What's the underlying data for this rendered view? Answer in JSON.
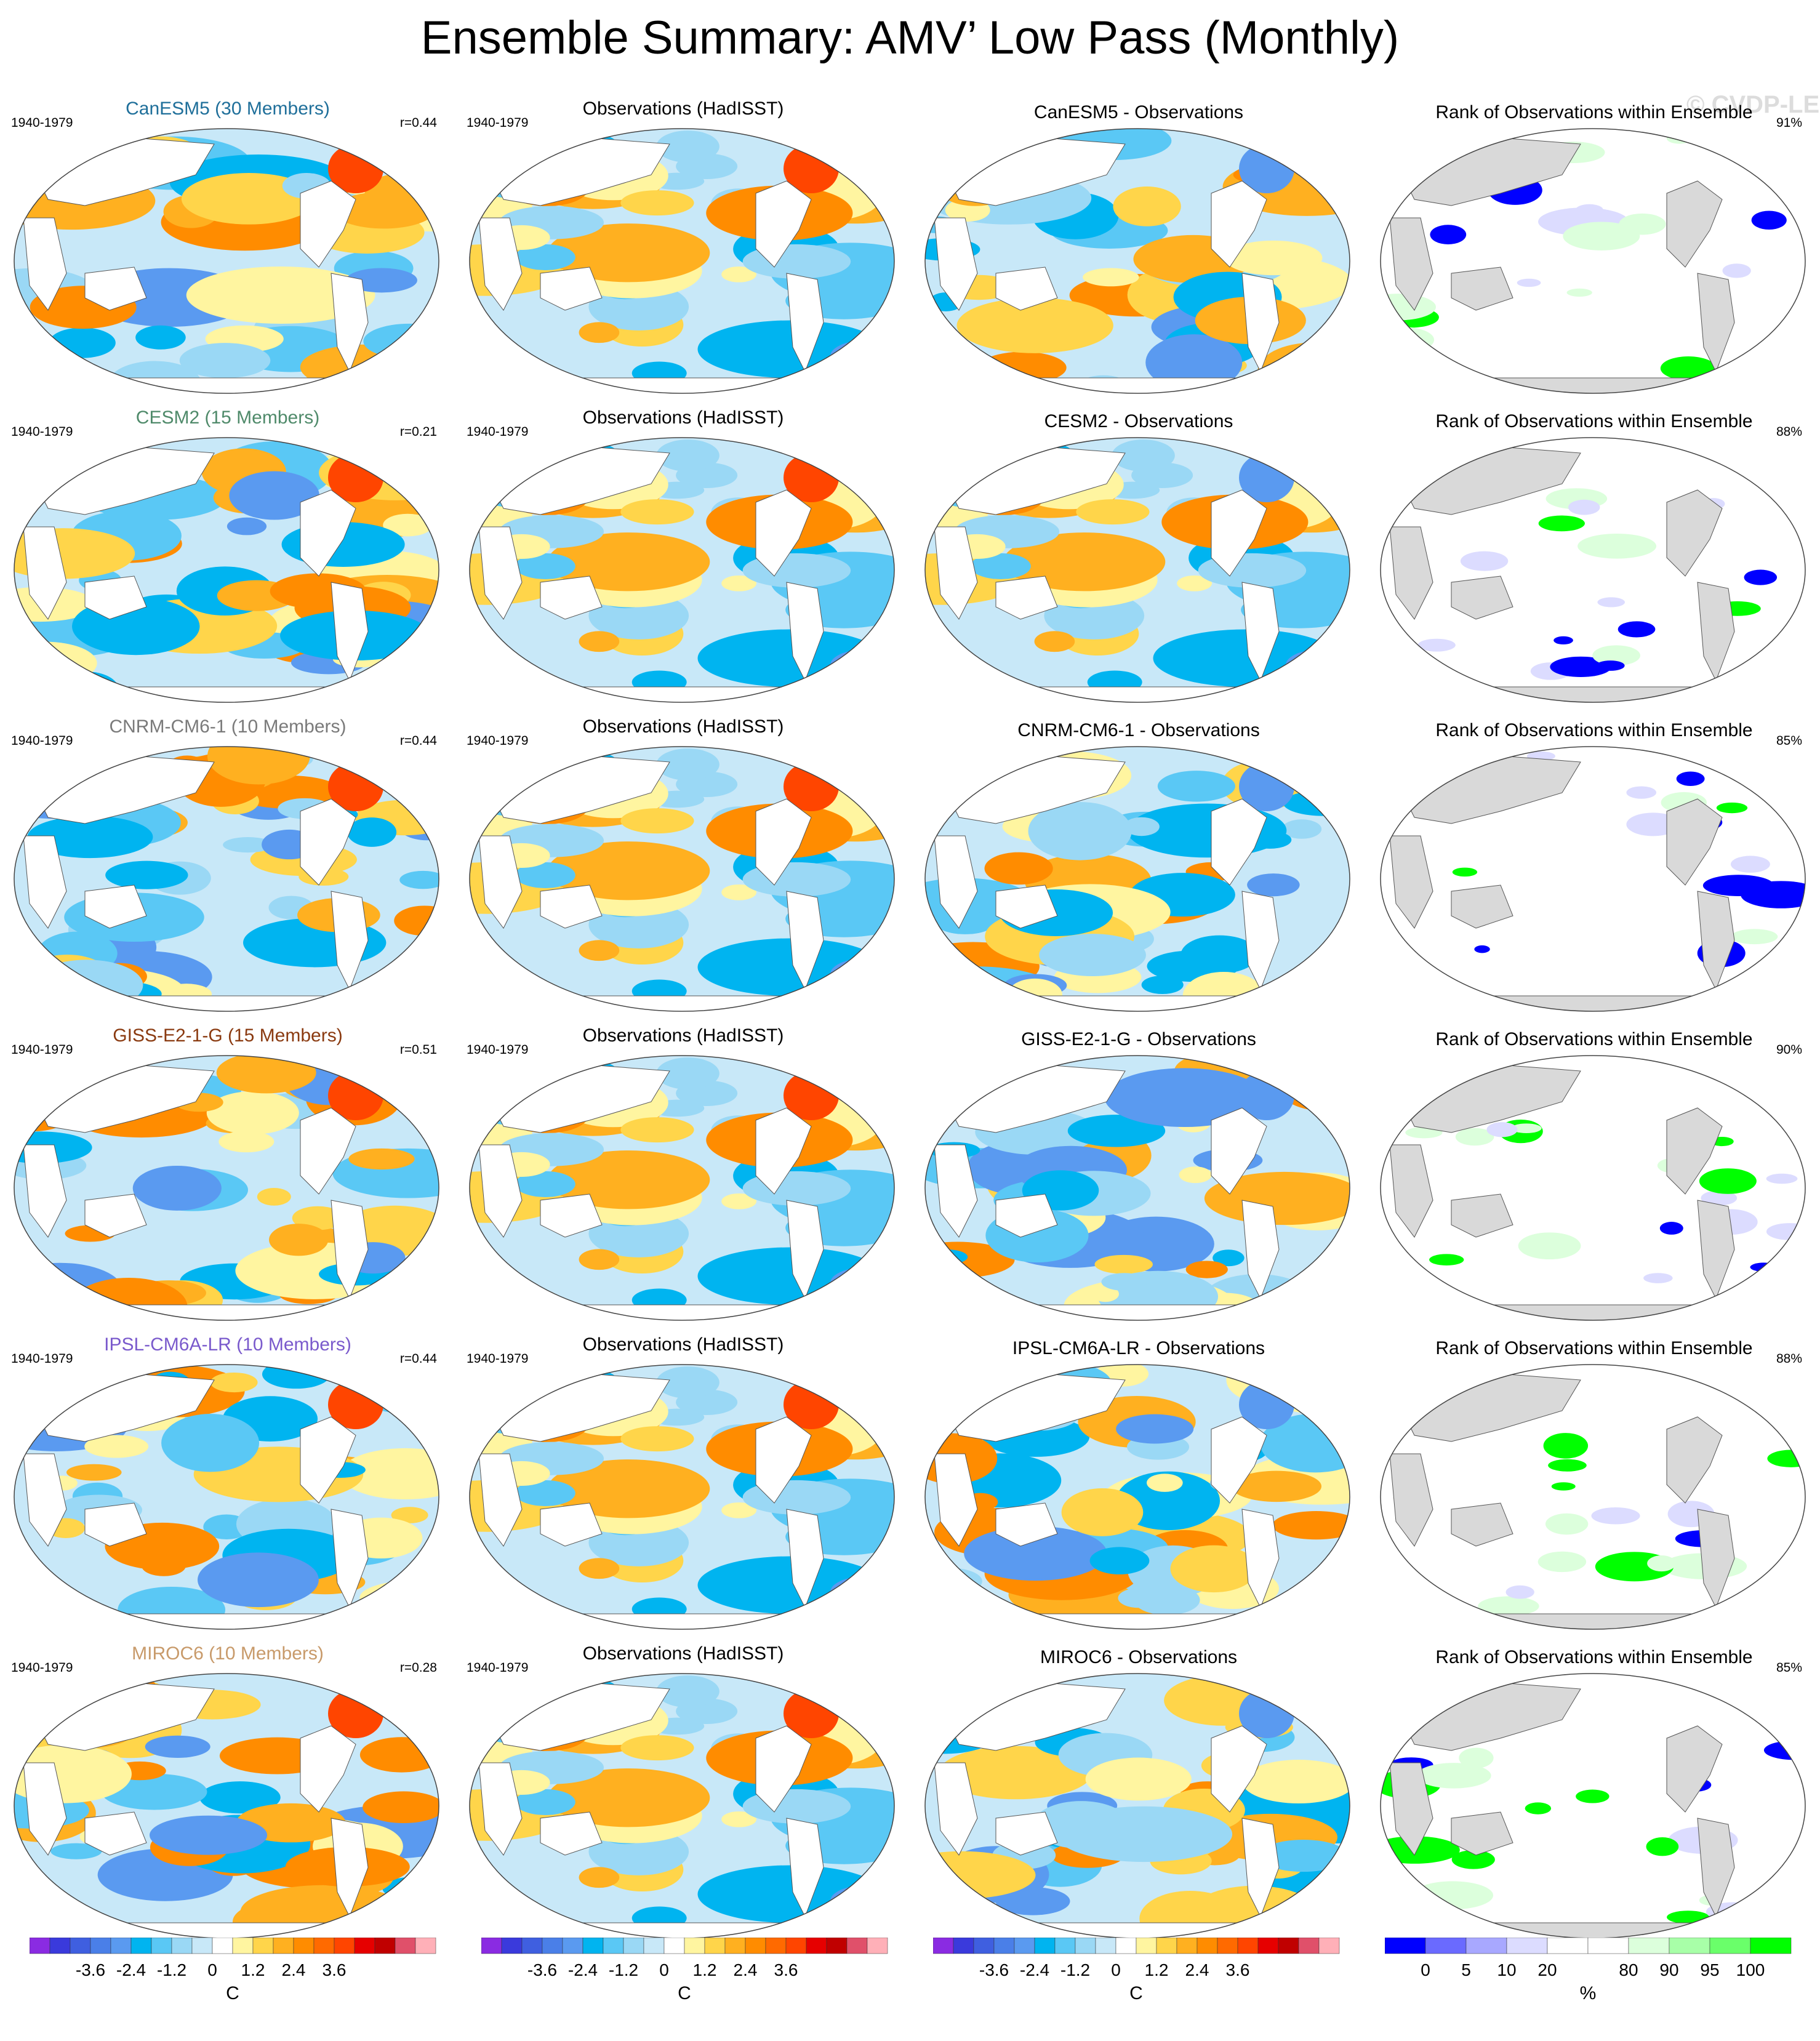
{
  "title": "Ensemble Summary: AMV’ Low Pass (Monthly)",
  "watermark": "© CVDP-LE",
  "period": "1940-1979",
  "obs_title": "Observations (HadISST)",
  "rank_title": "Rank of Observations within Ensemble",
  "rows": [
    {
      "model": "CanESM5 (30 Members)",
      "model_color": "#1f6f9a",
      "r": "r=0.44",
      "diff_title": "CanESM5 - Observations",
      "rank_pct": "91%"
    },
    {
      "model": "CESM2 (15 Members)",
      "model_color": "#4f8a6a",
      "r": "r=0.21",
      "diff_title": "CESM2 - Observations",
      "rank_pct": "88%"
    },
    {
      "model": "CNRM-CM6-1 (10 Members)",
      "model_color": "#7a7a7a",
      "r": "r=0.44",
      "diff_title": "CNRM-CM6-1 - Observations",
      "rank_pct": "85%"
    },
    {
      "model": "GISS-E2-1-G (15 Members)",
      "model_color": "#8a3a10",
      "r": "r=0.51",
      "diff_title": "GISS-E2-1-G - Observations",
      "rank_pct": "90%"
    },
    {
      "model": "IPSL-CM6A-LR (10 Members)",
      "model_color": "#7a5acc",
      "r": "r=0.44",
      "diff_title": "IPSL-CM6A-LR - Observations",
      "rank_pct": "88%"
    },
    {
      "model": "MIROC6 (10 Members)",
      "model_color": "#c89a6a",
      "r": "r=0.28",
      "diff_title": "MIROC6 - Observations",
      "rank_pct": "85%"
    }
  ],
  "sst_colorbar": {
    "colors": [
      "#8a2be2",
      "#3a3adc",
      "#3f5fe0",
      "#4a7fe8",
      "#5a9af0",
      "#00b4f0",
      "#5ac8f5",
      "#9ad8f5",
      "#c8e8f8",
      "#ffffff",
      "#fff5a0",
      "#ffd54a",
      "#ffb020",
      "#ff8c00",
      "#ff6a00",
      "#ff4500",
      "#e60000",
      "#c00000",
      "#e0506a",
      "#ffb0b8"
    ],
    "ticks": [
      "-3.6",
      "-2.4",
      "-1.2",
      "0",
      "1.2",
      "2.4",
      "3.6"
    ],
    "unit": "C"
  },
  "rank_colorbar": {
    "colors": [
      "#0000ff",
      "#6a6aff",
      "#a8a8ff",
      "#dcdcff",
      "#ffffff",
      "#ffffff",
      "#dcffdc",
      "#a8ffa8",
      "#6aff6a",
      "#00ff00"
    ],
    "ticks": [
      "0",
      "5",
      "10",
      "20",
      "80",
      "90",
      "95",
      "100"
    ],
    "unit": "%"
  }
}
